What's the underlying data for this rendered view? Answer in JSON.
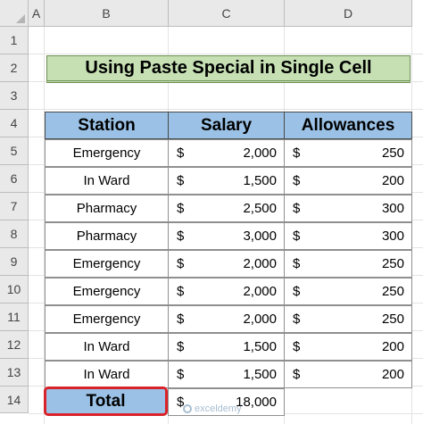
{
  "columns": [
    "A",
    "B",
    "C",
    "D"
  ],
  "rows": [
    "1",
    "2",
    "3",
    "4",
    "5",
    "6",
    "7",
    "8",
    "9",
    "10",
    "11",
    "12",
    "13",
    "14"
  ],
  "title": "Using Paste Special in Single Cell",
  "table": {
    "headers": [
      "Station",
      "Salary",
      "Allowances"
    ],
    "currency_symbol": "$",
    "rows": [
      {
        "station": "Emergency",
        "salary": "2,000",
        "allowances": "250"
      },
      {
        "station": "In Ward",
        "salary": "1,500",
        "allowances": "200"
      },
      {
        "station": "Pharmacy",
        "salary": "2,500",
        "allowances": "300"
      },
      {
        "station": "Pharmacy",
        "salary": "3,000",
        "allowances": "300"
      },
      {
        "station": "Emergency",
        "salary": "2,000",
        "allowances": "250"
      },
      {
        "station": "Emergency",
        "salary": "2,000",
        "allowances": "250"
      },
      {
        "station": "Emergency",
        "salary": "2,000",
        "allowances": "250"
      },
      {
        "station": "In Ward",
        "salary": "1,500",
        "allowances": "200"
      },
      {
        "station": "In Ward",
        "salary": "1,500",
        "allowances": "200"
      }
    ],
    "total": {
      "label": "Total",
      "salary": "18,000"
    }
  },
  "watermark": "exceldemy",
  "colors": {
    "title_fill": "#c6e0b4",
    "header_fill": "#9bc2e6",
    "highlight_border": "#d9232a"
  }
}
